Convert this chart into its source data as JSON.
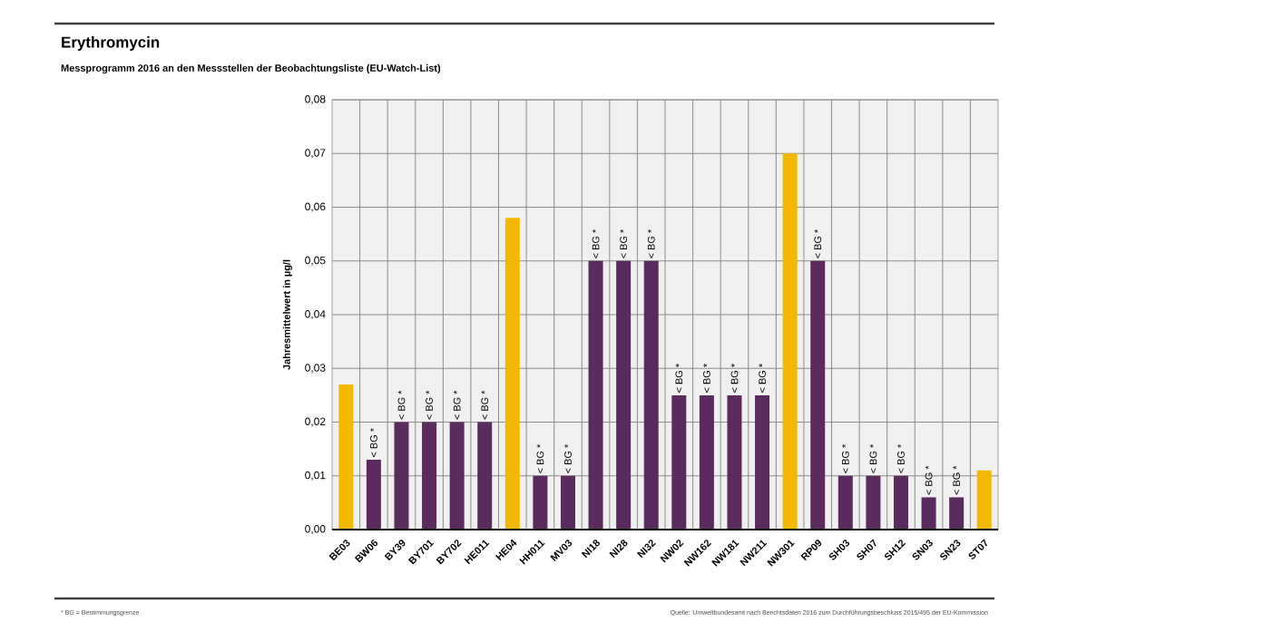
{
  "chart_data": {
    "type": "bar",
    "title": "Erythromycin",
    "subtitle": "Messprogramm 2016 an den Messstellen der Beobachtungsliste (EU-Watch-List)",
    "ylabel": "Jahresmittelwert in µg/l",
    "categories": [
      "BE03",
      "BW06",
      "BY39",
      "BY701",
      "BY702",
      "HE011",
      "HE04",
      "HH011",
      "MV03",
      "NI18",
      "NI28",
      "NI32",
      "NW02",
      "NW162",
      "NW181",
      "NW211",
      "NW301",
      "RP09",
      "SH03",
      "SH07",
      "SH12",
      "SN03",
      "SN23",
      "ST07"
    ],
    "values": [
      0.027,
      0.013,
      0.02,
      0.02,
      0.02,
      0.02,
      0.058,
      0.01,
      0.01,
      0.05,
      0.05,
      0.05,
      0.025,
      0.025,
      0.025,
      0.025,
      0.07,
      0.05,
      0.01,
      0.01,
      0.01,
      0.006,
      0.006,
      0.011
    ],
    "colors": [
      "#f5b800",
      "#5b2a5e",
      "#5b2a5e",
      "#5b2a5e",
      "#5b2a5e",
      "#5b2a5e",
      "#f5b800",
      "#5b2a5e",
      "#5b2a5e",
      "#5b2a5e",
      "#5b2a5e",
      "#5b2a5e",
      "#5b2a5e",
      "#5b2a5e",
      "#5b2a5e",
      "#5b2a5e",
      "#f5b800",
      "#5b2a5e",
      "#5b2a5e",
      "#5b2a5e",
      "#5b2a5e",
      "#5b2a5e",
      "#5b2a5e",
      "#f5b800"
    ],
    "value_labels": [
      null,
      "< BG *",
      "< BG *",
      "< BG *",
      "< BG *",
      "< BG *",
      null,
      "< BG *",
      "< BG *",
      "< BG *",
      "< BG *",
      "< BG *",
      "< BG *",
      "< BG *",
      "< BG *",
      "< BG *",
      null,
      "< BG *",
      "< BG *",
      "< BG *",
      "< BG *",
      "< BG *",
      "< BG *",
      null
    ],
    "ylim": [
      0,
      0.08
    ],
    "yticks": [
      {
        "value": 0,
        "label": "0,00"
      },
      {
        "value": 0.01,
        "label": "0,01"
      },
      {
        "value": 0.02,
        "label": "0,02"
      },
      {
        "value": 0.03,
        "label": "0,03"
      },
      {
        "value": 0.04,
        "label": "0,04"
      },
      {
        "value": 0.05,
        "label": "0,05"
      },
      {
        "value": 0.06,
        "label": "0,06"
      },
      {
        "value": 0.07,
        "label": "0,07"
      },
      {
        "value": 0.08,
        "label": "0,08"
      }
    ],
    "grid": true,
    "annotations": [
      "* BG = Bestimmungsgrenze",
      "Quelle: Umweltbundesamt nach Berichtsdaten 2016 zum Durchführungsbeschluss 2015/495 der EU-Kommission"
    ]
  }
}
